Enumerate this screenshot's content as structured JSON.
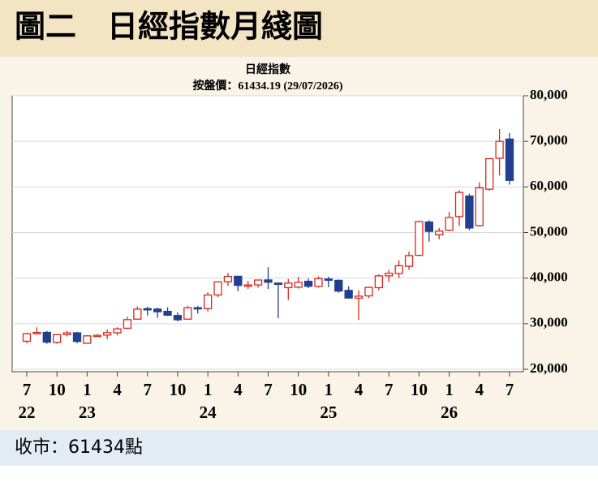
{
  "header": "圖二　日經指數月綫圖",
  "footer": "收市：61434點",
  "chart_data": {
    "type": "candlestick",
    "title": "日經指數",
    "subtitle": "按盤價：61434.19 (29/07/2026)",
    "categories": [
      "7",
      null,
      null,
      "10",
      null,
      null,
      "1",
      null,
      null,
      "4",
      null,
      null,
      "7",
      null,
      null,
      "10",
      null,
      null,
      "1",
      null,
      null,
      "4",
      null,
      null,
      "7",
      null,
      null,
      "10",
      null,
      null,
      "1",
      null,
      null,
      "4",
      null,
      null,
      "7",
      null,
      null,
      "10",
      null,
      null,
      "1",
      null,
      null,
      "4",
      null,
      null,
      "7"
    ],
    "years": [
      "22",
      null,
      null,
      null,
      null,
      null,
      "23",
      null,
      null,
      null,
      null,
      null,
      null,
      null,
      null,
      null,
      null,
      null,
      "24",
      null,
      null,
      null,
      null,
      null,
      null,
      null,
      null,
      null,
      null,
      null,
      "25",
      null,
      null,
      null,
      null,
      null,
      null,
      null,
      null,
      null,
      null,
      null,
      "26",
      null,
      null,
      null,
      null,
      null,
      null
    ],
    "open": [
      26150,
      27800,
      28100,
      25900,
      27600,
      28000,
      25700,
      27400,
      27500,
      28000,
      29000,
      31000,
      33300,
      33200,
      32700,
      31800,
      31000,
      33500,
      33300,
      36300,
      39200,
      40400,
      38300,
      38500,
      39600,
      38900,
      37900,
      38000,
      39300,
      38200,
      39800,
      39500,
      37300,
      35600,
      36100,
      37900,
      40500,
      41000,
      42600,
      45000,
      52300,
      49500,
      50500,
      53500,
      58000,
      51500,
      59500,
      66300,
      70500
    ],
    "high": [
      28000,
      29200,
      28400,
      27600,
      28400,
      28200,
      27500,
      27700,
      28700,
      29200,
      31500,
      33800,
      33700,
      33500,
      33600,
      32500,
      33900,
      33900,
      36900,
      39200,
      41100,
      40500,
      39400,
      39500,
      42400,
      38900,
      39800,
      40300,
      39900,
      40400,
      40300,
      39700,
      38200,
      37300,
      38100,
      40800,
      41800,
      43900,
      45800,
      52600,
      52700,
      51000,
      54500,
      59300,
      58500,
      61000,
      66300,
      72700,
      71800
    ],
    "low": [
      25700,
      27600,
      25600,
      25600,
      27200,
      25700,
      25600,
      27100,
      26600,
      27400,
      28800,
      30900,
      31800,
      31300,
      31700,
      30500,
      30900,
      32200,
      32700,
      35800,
      38300,
      37100,
      37600,
      37900,
      37600,
      31200,
      35200,
      37700,
      37800,
      37900,
      38000,
      36800,
      35600,
      30800,
      35600,
      37300,
      39200,
      40000,
      41800,
      44800,
      48000,
      48500,
      50300,
      51500,
      50500,
      51300,
      59200,
      62500,
      60500
    ],
    "close": [
      27800,
      28090,
      25940,
      27590,
      27970,
      26100,
      27330,
      27450,
      28040,
      28860,
      30890,
      33190,
      33170,
      32620,
      31860,
      30860,
      33490,
      33460,
      36290,
      39170,
      40370,
      38400,
      38490,
      39580,
      39100,
      38650,
      38900,
      39080,
      38210,
      39890,
      39570,
      37150,
      35620,
      36040,
      37960,
      40490,
      41070,
      42720,
      44930,
      52400,
      50250,
      50300,
      53300,
      58800,
      51000,
      59800,
      66200,
      70000,
      61434.19
    ],
    "up_color": "#d8261f",
    "down_color": "#233f8f",
    "ylim": [
      20000,
      80000
    ],
    "yticks": [
      {
        "value": 20000,
        "label": "20,000"
      },
      {
        "value": 30000,
        "label": "30,000"
      },
      {
        "value": 40000,
        "label": "40,000"
      },
      {
        "value": 50000,
        "label": "50,000"
      },
      {
        "value": 60000,
        "label": "60,000"
      },
      {
        "value": 70000,
        "label": "70,000"
      },
      {
        "value": 80000,
        "label": "80,000"
      }
    ],
    "grid": true
  }
}
